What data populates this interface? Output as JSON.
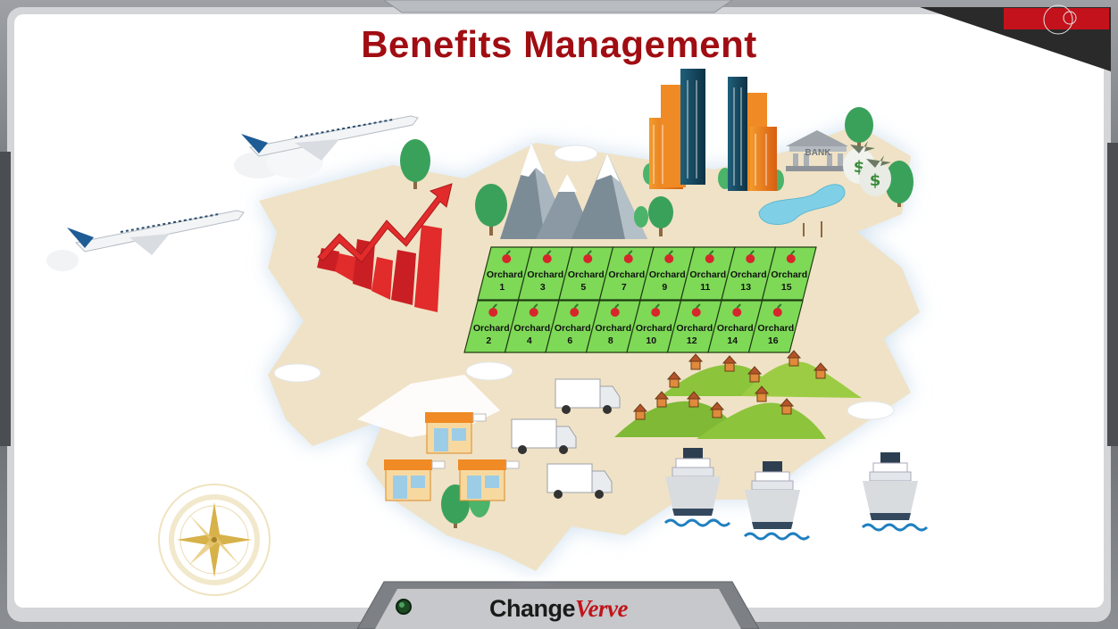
{
  "slide": {
    "title": "Benefits Management"
  },
  "brand": {
    "part1": "Change",
    "part2": "Verve"
  },
  "orchards": {
    "top_row": [
      {
        "line1": "Orchard",
        "line2": "1"
      },
      {
        "line1": "Orchard",
        "line2": "3"
      },
      {
        "line1": "Orchard",
        "line2": "5"
      },
      {
        "line1": "Orchard",
        "line2": "7"
      },
      {
        "line1": "Orchard",
        "line2": "9"
      },
      {
        "line1": "Orchard",
        "line2": "11"
      },
      {
        "line1": "Orchard",
        "line2": "13"
      },
      {
        "line1": "Orchard",
        "line2": "15"
      }
    ],
    "bottom_row": [
      {
        "line1": "Orchard",
        "line2": "2"
      },
      {
        "line1": "Orchard",
        "line2": "4"
      },
      {
        "line1": "Orchard",
        "line2": "6"
      },
      {
        "line1": "Orchard",
        "line2": "8"
      },
      {
        "line1": "Orchard",
        "line2": "10"
      },
      {
        "line1": "Orchard",
        "line2": "12"
      },
      {
        "line1": "Orchard",
        "line2": "14"
      },
      {
        "line1": "Orchard",
        "line2": "16"
      }
    ]
  },
  "bank_label": "BANK",
  "colors": {
    "title": "#a00d12",
    "land": "#f0e2c6",
    "orchard_green": "#7ed957",
    "chart_red": "#e22b2b",
    "frame": "#7a7d82"
  }
}
